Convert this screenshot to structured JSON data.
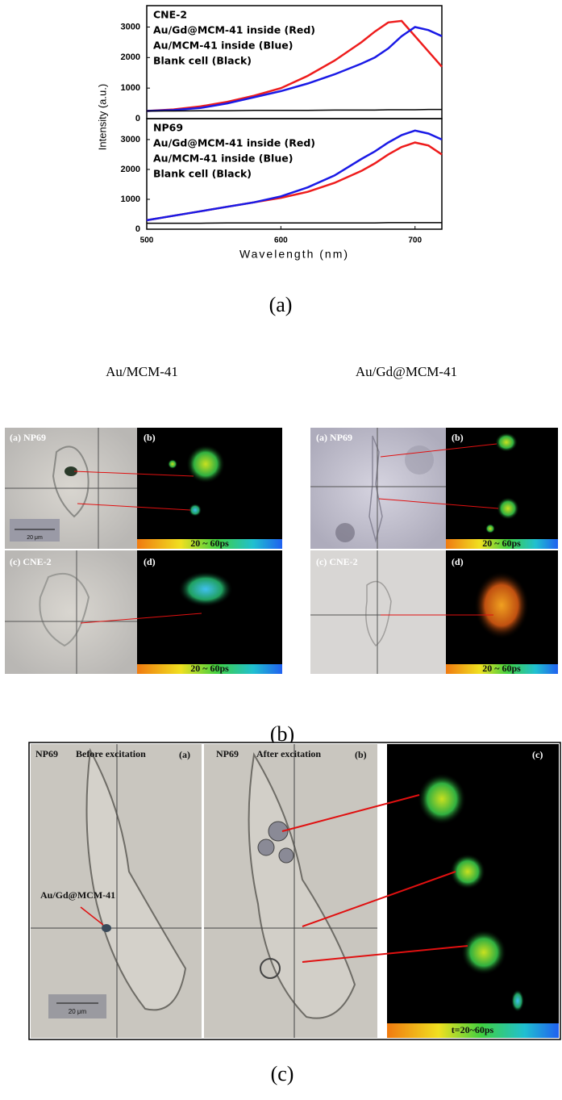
{
  "figure": {
    "y_label": "Intensity (a.u.)",
    "x_label": "Wavelength (nm)",
    "label": "(a)"
  },
  "chart_data": [
    {
      "type": "line",
      "title": "CNE-2",
      "x": [
        500,
        520,
        540,
        560,
        580,
        600,
        620,
        640,
        660,
        670,
        680,
        690,
        700,
        710,
        720
      ],
      "series": [
        {
          "name": "Au/Gd@MCM-41 inside (Red)",
          "color": "#ee1c1c",
          "values": [
            250,
            300,
            400,
            550,
            750,
            1000,
            1400,
            1900,
            2500,
            2850,
            3150,
            3200,
            2700,
            2200,
            1700
          ]
        },
        {
          "name": "Au/MCM-41 inside (Blue)",
          "color": "#1a1ae6",
          "values": [
            250,
            280,
            350,
            500,
            700,
            900,
            1150,
            1450,
            1800,
            2000,
            2300,
            2700,
            3000,
            2900,
            2700
          ]
        },
        {
          "name": "Blank cell (Black)",
          "color": "#000000",
          "values": [
            250,
            250,
            260,
            260,
            270,
            270,
            270,
            280,
            280,
            280,
            290,
            290,
            290,
            300,
            300
          ]
        }
      ],
      "xlim": [
        500,
        720
      ],
      "ylim": [
        0,
        3700
      ],
      "yticks": [
        0,
        1000,
        2000,
        3000
      ]
    },
    {
      "type": "line",
      "title": "NP69",
      "x": [
        500,
        520,
        540,
        560,
        580,
        600,
        620,
        640,
        660,
        670,
        680,
        690,
        700,
        710,
        720
      ],
      "series": [
        {
          "name": "Au/Gd@MCM-41 inside (Red)",
          "color": "#ee1c1c",
          "values": [
            300,
            450,
            600,
            750,
            900,
            1050,
            1250,
            1550,
            1950,
            2200,
            2500,
            2750,
            2900,
            2800,
            2500
          ]
        },
        {
          "name": "Au/MCM-41 inside (Blue)",
          "color": "#1a1ae6",
          "values": [
            300,
            450,
            600,
            750,
            900,
            1100,
            1400,
            1800,
            2350,
            2600,
            2900,
            3150,
            3300,
            3200,
            3000
          ]
        },
        {
          "name": "Blank cell (Black)",
          "color": "#000000",
          "values": [
            200,
            200,
            200,
            210,
            210,
            210,
            210,
            210,
            210,
            210,
            220,
            220,
            220,
            220,
            220
          ]
        }
      ],
      "xlim": [
        500,
        720
      ],
      "ylim": [
        0,
        3700
      ],
      "yticks": [
        0,
        1000,
        2000,
        3000
      ],
      "xticks": [
        500,
        600,
        700
      ]
    }
  ],
  "section_b": {
    "column_titles": [
      "Au/MCM-41",
      "Au/Gd@MCM-41"
    ],
    "left": {
      "panels": [
        "(a) NP69",
        "(b)",
        "(c) CNE-2",
        "(d)"
      ],
      "scale_bar": "20 μm",
      "time_range": "20 ~ 60ps"
    },
    "right": {
      "panels": [
        "(a) NP69",
        "(b)",
        "(c) CNE-2",
        "(d)"
      ],
      "time_range": "20 ~ 60ps"
    },
    "label": "(b)"
  },
  "section_c": {
    "panels": [
      {
        "sample": "NP69",
        "state": "Before excitation",
        "label": "(a)"
      },
      {
        "sample": "NP69",
        "state": "After excitation",
        "label": "(b)"
      },
      {
        "label": "(c)"
      }
    ],
    "particle_label": "Au/Gd@MCM-41",
    "scale_bar": "20 μm",
    "time_range": "t=20~60ps",
    "label": "(c)"
  }
}
